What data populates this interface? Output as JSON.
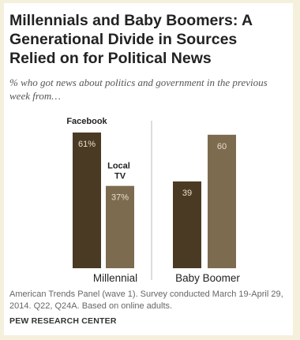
{
  "title": "Millennials and Baby Boomers: A Generational Divide in Sources Relied on for Political News",
  "subtitle": "% who got news about politics and government in the previous week from…",
  "footnote": "American Trends Panel (wave 1). Survey conducted March 19-April 29, 2014. Q22, Q24A. Based on online adults.",
  "source": "PEW RESEARCH CENTER",
  "colors": {
    "facebook": "#4b3a23",
    "local_tv": "#7d6b50",
    "frame": "#f4f0dc"
  },
  "chart_data": {
    "type": "bar",
    "categories": [
      "Millennial",
      "Baby Boomer"
    ],
    "series": [
      {
        "name": "Facebook",
        "values": [
          61,
          39
        ],
        "labels": [
          "61%",
          "39"
        ]
      },
      {
        "name": "Local TV",
        "values": [
          37,
          60
        ],
        "labels": [
          "37%",
          "60"
        ]
      }
    ],
    "ylim": [
      0,
      70
    ],
    "grid": false
  }
}
